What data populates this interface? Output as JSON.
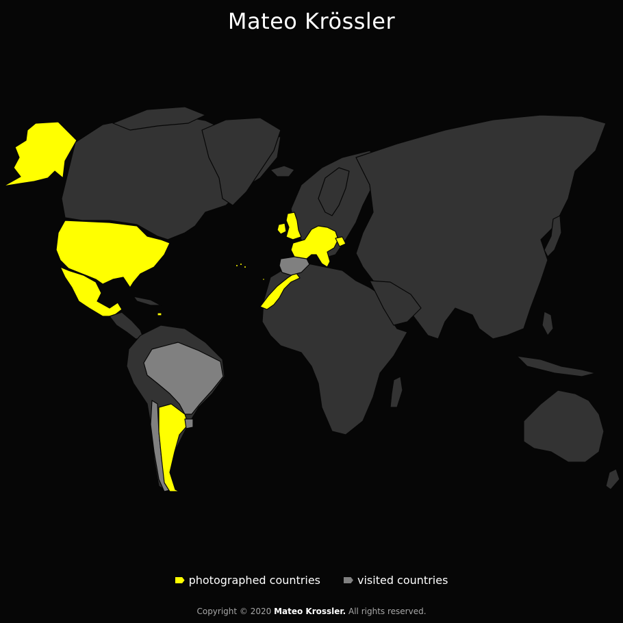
{
  "header": {
    "title": "Mateo Krössler"
  },
  "legend": [
    {
      "label": "photographed countries",
      "color": "#ffff00"
    },
    {
      "label": "visited countries",
      "color": "#808080"
    }
  ],
  "map": {
    "colors": {
      "land": "#333333",
      "photographed": "#ffff00",
      "visited": "#808080",
      "background": "#060606"
    },
    "photographed_countries": [
      "United States",
      "Mexico",
      "United Kingdom",
      "Ireland",
      "France",
      "Germany",
      "Switzerland",
      "Austria",
      "Italy",
      "Belgium",
      "Netherlands",
      "Czechia",
      "Slovenia",
      "Croatia",
      "Morocco",
      "Western Sahara",
      "Portugal (Azores)",
      "Argentina"
    ],
    "visited_countries": [
      "Spain",
      "Brazil",
      "Chile",
      "Uruguay"
    ]
  },
  "footer": {
    "prefix": "Copyright © 2020 ",
    "name": "Mateo Krossler.",
    "suffix": " All rights reserved."
  }
}
